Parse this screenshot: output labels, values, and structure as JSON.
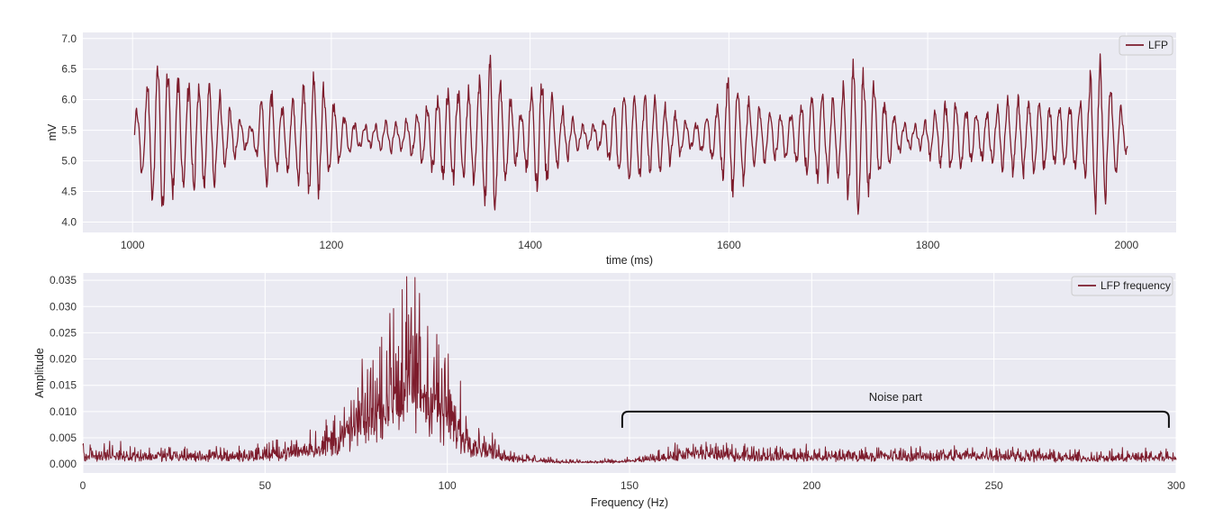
{
  "chart_data": [
    {
      "type": "line",
      "xlabel": "time (ms)",
      "ylabel": "mV",
      "xlim": [
        950,
        2050
      ],
      "ylim": [
        3.83,
        7.1
      ],
      "x_ticks": [
        1000,
        1200,
        1400,
        1600,
        1800,
        2000
      ],
      "y_ticks": [
        "4.0",
        "4.5",
        "5.0",
        "5.5",
        "6.0",
        "6.5",
        "7.0"
      ],
      "grid": true,
      "legend_position": "top-right",
      "series": [
        {
          "name": "LFP",
          "color": "#7d1c2c",
          "x_range": [
            1002,
            2001
          ],
          "baseline": 5.4,
          "min": 3.95,
          "max": 6.95,
          "oscillation_period_ms": 10.5,
          "envelope": [
            [
              1000,
              0.2
            ],
            [
              1015,
              0.9
            ],
            [
              1030,
              1.2
            ],
            [
              1045,
              0.9
            ],
            [
              1060,
              0.8
            ],
            [
              1075,
              0.85
            ],
            [
              1090,
              0.6
            ],
            [
              1105,
              0.3
            ],
            [
              1120,
              0.15
            ],
            [
              1135,
              0.8
            ],
            [
              1150,
              0.45
            ],
            [
              1165,
              0.7
            ],
            [
              1180,
              1.05
            ],
            [
              1195,
              0.75
            ],
            [
              1210,
              0.35
            ],
            [
              1225,
              0.2
            ],
            [
              1240,
              0.15
            ],
            [
              1255,
              0.25
            ],
            [
              1270,
              0.2
            ],
            [
              1285,
              0.35
            ],
            [
              1300,
              0.55
            ],
            [
              1315,
              0.75
            ],
            [
              1330,
              0.7
            ],
            [
              1345,
              0.8
            ],
            [
              1360,
              1.3
            ],
            [
              1375,
              0.8
            ],
            [
              1390,
              0.35
            ],
            [
              1400,
              0.7
            ],
            [
              1410,
              0.95
            ],
            [
              1425,
              0.55
            ],
            [
              1440,
              0.3
            ],
            [
              1455,
              0.15
            ],
            [
              1470,
              0.2
            ],
            [
              1485,
              0.5
            ],
            [
              1500,
              0.75
            ],
            [
              1515,
              0.6
            ],
            [
              1530,
              0.55
            ],
            [
              1545,
              0.35
            ],
            [
              1560,
              0.2
            ],
            [
              1575,
              0.25
            ],
            [
              1590,
              0.5
            ],
            [
              1600,
              0.95
            ],
            [
              1615,
              0.7
            ],
            [
              1630,
              0.45
            ],
            [
              1645,
              0.35
            ],
            [
              1660,
              0.35
            ],
            [
              1675,
              0.55
            ],
            [
              1690,
              0.7
            ],
            [
              1705,
              0.6
            ],
            [
              1720,
              0.95
            ],
            [
              1730,
              1.2
            ],
            [
              1745,
              0.85
            ],
            [
              1760,
              0.45
            ],
            [
              1775,
              0.2
            ],
            [
              1790,
              0.15
            ],
            [
              1805,
              0.35
            ],
            [
              1820,
              0.55
            ],
            [
              1835,
              0.5
            ],
            [
              1850,
              0.35
            ],
            [
              1865,
              0.4
            ],
            [
              1880,
              0.55
            ],
            [
              1895,
              0.6
            ],
            [
              1910,
              0.55
            ],
            [
              1925,
              0.45
            ],
            [
              1940,
              0.5
            ],
            [
              1955,
              0.55
            ],
            [
              1970,
              1.3
            ],
            [
              1985,
              0.8
            ],
            [
              2000,
              0.25
            ]
          ]
        }
      ]
    },
    {
      "type": "line",
      "xlabel": "Frequency (Hz)",
      "ylabel": "Amplitude",
      "xlim": [
        0,
        300
      ],
      "ylim": [
        -0.0017,
        0.0364
      ],
      "x_ticks": [
        0,
        50,
        100,
        150,
        200,
        250,
        300
      ],
      "y_ticks": [
        "0.000",
        "0.005",
        "0.010",
        "0.015",
        "0.020",
        "0.025",
        "0.030",
        "0.035"
      ],
      "grid": true,
      "legend_position": "top-right",
      "annotation": {
        "text": "Noise part",
        "x_range": [
          148,
          298
        ],
        "y": 0.01
      },
      "series": [
        {
          "name": "LFP frequency",
          "color": "#7d1c2c",
          "x_range": [
            0,
            300
          ],
          "points": 2400,
          "max": 0.0357,
          "envelope": [
            [
              0,
              0.003
            ],
            [
              10,
              0.003
            ],
            [
              20,
              0.0025
            ],
            [
              30,
              0.0025
            ],
            [
              40,
              0.0025
            ],
            [
              50,
              0.003
            ],
            [
              60,
              0.0045
            ],
            [
              65,
              0.006
            ],
            [
              70,
              0.008
            ],
            [
              75,
              0.012
            ],
            [
              80,
              0.018
            ],
            [
              85,
              0.024
            ],
            [
              88,
              0.028
            ],
            [
              92,
              0.028
            ],
            [
              95,
              0.025
            ],
            [
              98,
              0.02
            ],
            [
              102,
              0.013
            ],
            [
              106,
              0.008
            ],
            [
              110,
              0.005
            ],
            [
              115,
              0.003
            ],
            [
              120,
              0.0018
            ],
            [
              125,
              0.0012
            ],
            [
              130,
              0.0008
            ],
            [
              140,
              0.0006
            ],
            [
              148,
              0.0008
            ],
            [
              155,
              0.0015
            ],
            [
              160,
              0.0025
            ],
            [
              170,
              0.0035
            ],
            [
              180,
              0.003
            ],
            [
              190,
              0.0028
            ],
            [
              200,
              0.0025
            ],
            [
              210,
              0.0025
            ],
            [
              220,
              0.0025
            ],
            [
              230,
              0.0025
            ],
            [
              240,
              0.0028
            ],
            [
              250,
              0.003
            ],
            [
              260,
              0.0025
            ],
            [
              270,
              0.002
            ],
            [
              280,
              0.002
            ],
            [
              290,
              0.0022
            ],
            [
              300,
              0.0025
            ]
          ]
        }
      ]
    }
  ]
}
